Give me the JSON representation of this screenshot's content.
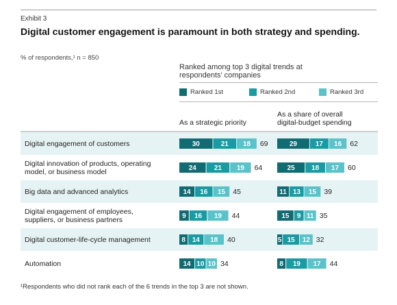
{
  "header": {
    "exhibit": "Exhibit 3",
    "title": "Digital customer engagement is paramount in both strategy and spending.",
    "respondents": "% of respondents,¹ n = 850",
    "ranked_heading_1": "Ranked among top 3 digital trends at",
    "ranked_heading_2": "respondents’ companies"
  },
  "legend": [
    {
      "label": "Ranked 1st",
      "color": "#116b72"
    },
    {
      "label": "Ranked 2nd",
      "color": "#1b9aa4"
    },
    {
      "label": "Ranked 3rd",
      "color": "#5bc2c9"
    }
  ],
  "columns": {
    "strategic_1": "As a strategic priority",
    "spending_1": "As a share of overall",
    "spending_2": "digital-budget spending"
  },
  "rows": [
    {
      "label_lines": [
        "Digital engagement of customers"
      ]
    },
    {
      "label_lines": [
        "Digital innovation of products, operating",
        "model, or business model"
      ]
    },
    {
      "label_lines": [
        "Big data and advanced analytics"
      ]
    },
    {
      "label_lines": [
        "Digital engagement of employees,",
        "suppliers, or business partners"
      ]
    },
    {
      "label_lines": [
        "Digital customer-life-cycle management"
      ]
    },
    {
      "label_lines": [
        "Automation"
      ]
    }
  ],
  "chart_data": {
    "type": "bar",
    "stacked": true,
    "orientation": "horizontal",
    "categories": [
      "Digital engagement of customers",
      "Digital innovation of products, operating model, or business model",
      "Big data and advanced analytics",
      "Digital engagement of employees, suppliers, or business partners",
      "Digital customer-life-cycle management",
      "Automation"
    ],
    "panels": [
      {
        "title": "As a strategic priority",
        "series": [
          {
            "name": "Ranked 1st",
            "values": [
              30,
              24,
              14,
              9,
              8,
              14
            ]
          },
          {
            "name": "Ranked 2nd",
            "values": [
              21,
              21,
              16,
              16,
              14,
              10
            ]
          },
          {
            "name": "Ranked 3rd",
            "values": [
              18,
              19,
              15,
              19,
              18,
              10
            ]
          }
        ],
        "totals": [
          69,
          64,
          45,
          44,
          40,
          34
        ]
      },
      {
        "title": "As a share of overall digital-budget spending",
        "series": [
          {
            "name": "Ranked 1st",
            "values": [
              29,
              25,
              11,
              15,
              5,
              8
            ]
          },
          {
            "name": "Ranked 2nd",
            "values": [
              17,
              18,
              13,
              9,
              15,
              19
            ]
          },
          {
            "name": "Ranked 3rd",
            "values": [
              16,
              17,
              15,
              11,
              12,
              17
            ]
          }
        ],
        "totals": [
          62,
          60,
          39,
          35,
          32,
          44
        ]
      }
    ],
    "colors": [
      "#116b72",
      "#1b9aa4",
      "#5bc2c9"
    ],
    "row_band_color": "#e6f3f4",
    "legend_position": "top"
  },
  "footnote": "¹Respondents who did not rank each of the 6 trends in the top 3 are not shown."
}
